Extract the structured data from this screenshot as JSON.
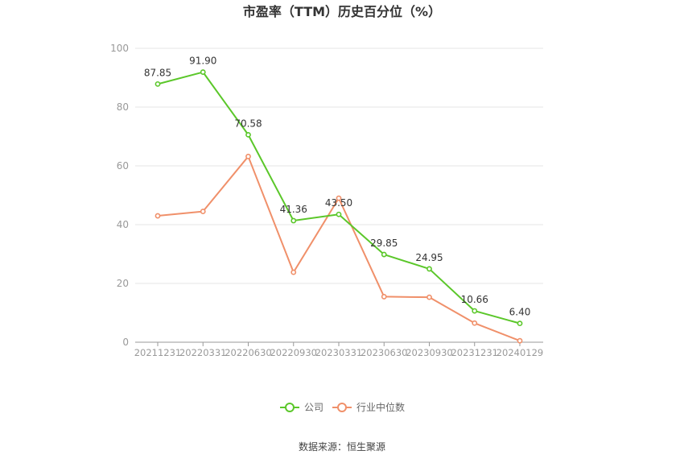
{
  "chart_data": {
    "type": "line",
    "title": "市盈率（TTM）历史百分位（%）",
    "categories": [
      "20211231",
      "20220331",
      "20220630",
      "20220930",
      "20230331",
      "20230630",
      "20230930",
      "20231231",
      "20240129"
    ],
    "series": [
      {
        "name": "公司",
        "values": [
          87.85,
          91.9,
          70.58,
          41.36,
          43.5,
          29.85,
          24.95,
          10.66,
          6.4
        ],
        "labels": [
          "87.85",
          "91.90",
          "70.58",
          "41.36",
          "43.50",
          "29.85",
          "24.95",
          "10.66",
          "6.40"
        ],
        "color": "#5bc72a"
      },
      {
        "name": "行业中位数",
        "values": [
          43.0,
          44.5,
          63.2,
          23.8,
          49.0,
          15.5,
          15.3,
          6.5,
          0.5
        ],
        "color": "#f0906a"
      }
    ],
    "ylim": [
      0,
      100
    ],
    "yticks": [
      "0",
      "20",
      "40",
      "60",
      "80",
      "100"
    ],
    "grid": true,
    "legend_position": "bottom"
  },
  "source": "数据来源：恒生聚源"
}
